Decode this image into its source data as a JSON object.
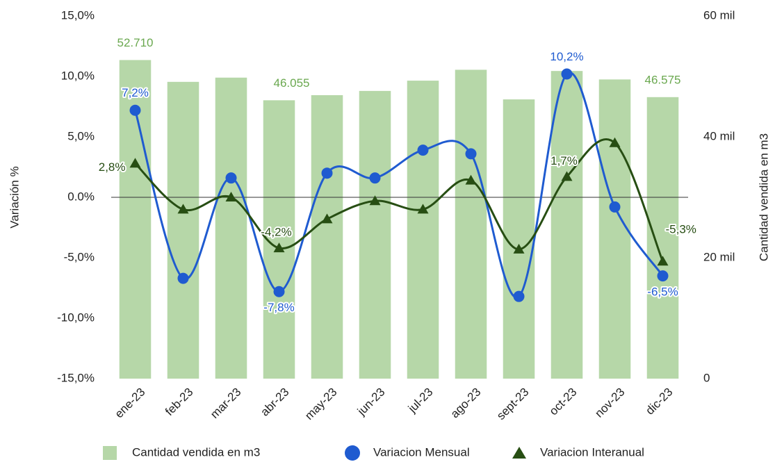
{
  "chart_data": {
    "type": "combo",
    "categories": [
      "ene-23",
      "feb-23",
      "mar-23",
      "abr-23",
      "may-23",
      "jun-23",
      "jul-23",
      "ago-23",
      "sept-23",
      "oct-23",
      "nov-23",
      "dic-23"
    ],
    "ylabel": "Variación %",
    "y2label": "Cantidad vendida en m3",
    "ylim": [
      -15,
      15
    ],
    "yticks": [
      {
        "value": 15,
        "label": "15,0%"
      },
      {
        "value": 10,
        "label": "10,0%"
      },
      {
        "value": 5,
        "label": "5,0%"
      },
      {
        "value": 0,
        "label": "0.0%"
      },
      {
        "value": -5,
        "label": "-5,0%"
      },
      {
        "value": -10,
        "label": "-10,0%"
      },
      {
        "value": -15,
        "label": "-15,0%"
      }
    ],
    "y2lim": [
      0,
      60000
    ],
    "y2ticks": [
      {
        "value": 60000,
        "label": "60 mil"
      },
      {
        "value": 40000,
        "label": "40 mil"
      },
      {
        "value": 20000,
        "label": "20 mil"
      },
      0
    ],
    "series": [
      {
        "name": "Cantidad vendida en m3",
        "type": "bar",
        "axis": "y2",
        "color": "#b6d7a8",
        "label_color": "#6aa84f",
        "values": [
          52710,
          49100,
          49800,
          46055,
          46900,
          47600,
          49300,
          51100,
          46200,
          50900,
          49500,
          46575
        ],
        "value_labels": [
          "52.710",
          null,
          null,
          "46.055",
          null,
          null,
          null,
          null,
          null,
          null,
          null,
          "46.575"
        ]
      },
      {
        "name": "Variacion Mensual",
        "type": "line",
        "marker": "circle",
        "color": "#1f5bd0",
        "label_color": "#1f5bd0",
        "values": [
          7.2,
          -6.7,
          1.6,
          -7.8,
          2.0,
          1.6,
          3.9,
          3.6,
          -8.2,
          10.2,
          -0.8,
          -6.5
        ],
        "value_labels": [
          "7,2%",
          null,
          null,
          "-7,8%",
          null,
          null,
          null,
          null,
          null,
          "10,2%",
          null,
          "-6,5%"
        ]
      },
      {
        "name": "Variacion Interanual",
        "type": "line",
        "marker": "triangle",
        "color": "#274e13",
        "label_color": "#274e13",
        "values": [
          2.8,
          -1.0,
          0.0,
          -4.2,
          -1.8,
          -0.3,
          -1.0,
          1.4,
          -4.3,
          1.7,
          4.5,
          -5.3
        ],
        "value_labels": [
          "2,8%",
          null,
          null,
          "-4,2%",
          null,
          null,
          null,
          null,
          null,
          "1,7%",
          null,
          "-5,3%"
        ]
      }
    ]
  }
}
